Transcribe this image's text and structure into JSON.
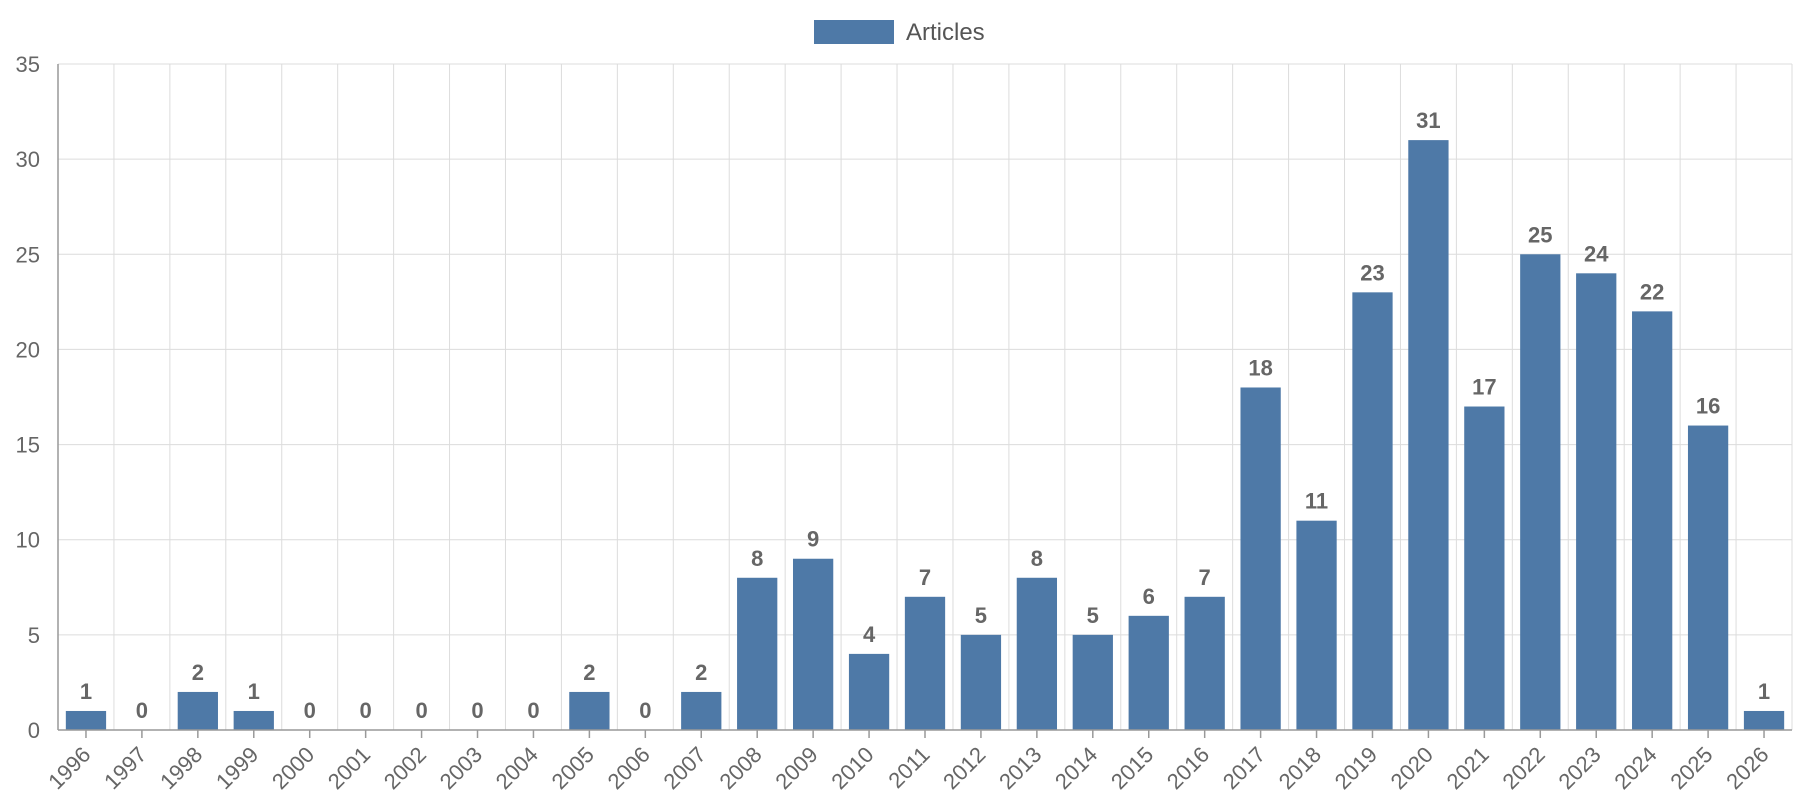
{
  "chart_data": {
    "type": "bar",
    "categories": [
      "1996",
      "1997",
      "1998",
      "1999",
      "2000",
      "2001",
      "2002",
      "2003",
      "2004",
      "2005",
      "2006",
      "2007",
      "2008",
      "2009",
      "2010",
      "2011",
      "2012",
      "2013",
      "2014",
      "2015",
      "2016",
      "2017",
      "2018",
      "2019",
      "2020",
      "2021",
      "2022",
      "2023",
      "2024",
      "2025",
      "2026"
    ],
    "series": [
      {
        "name": "Articles",
        "values": [
          1,
          0,
          2,
          1,
          0,
          0,
          0,
          0,
          0,
          2,
          0,
          2,
          8,
          9,
          4,
          7,
          5,
          8,
          5,
          6,
          7,
          18,
          11,
          23,
          31,
          17,
          25,
          24,
          22,
          16,
          1
        ],
        "color": "#4e79a7"
      }
    ],
    "ylim": [
      0,
      35
    ],
    "yticks": [
      0,
      5,
      10,
      15,
      20,
      25,
      30,
      35
    ],
    "grid": true,
    "legend_position": "top-center",
    "data_labels": true,
    "xlabel_rotation": -45
  }
}
